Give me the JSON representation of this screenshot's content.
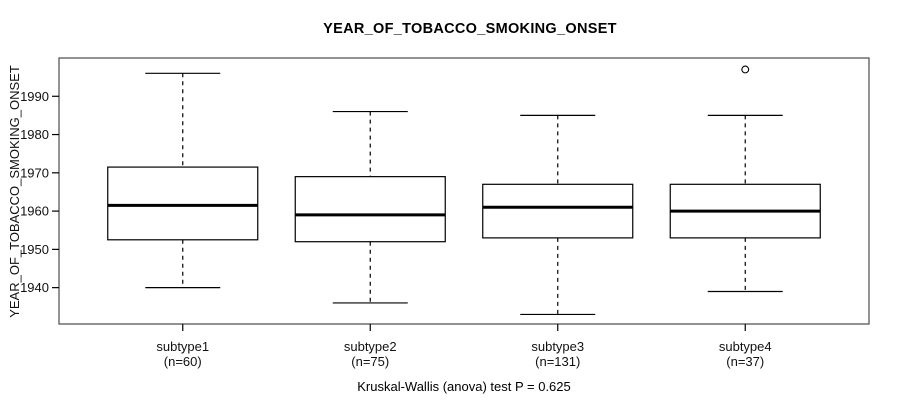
{
  "figure": {
    "title": "YEAR_OF_TOBACCO_SMOKING_ONSET",
    "caption": "Kruskal-Wallis (anova) test P = 0.625"
  },
  "chart_data": {
    "type": "boxplot",
    "title": "YEAR_OF_TOBACCO_SMOKING_ONSET",
    "ylabel": "YEAR_OF_TOBACCO_SMOKING_ONSET",
    "xlabel": "",
    "caption": "Kruskal-Wallis (anova) test P = 0.625",
    "ylim": [
      1930.5,
      2000
    ],
    "yticks": [
      1940,
      1950,
      1960,
      1970,
      1980,
      1990
    ],
    "grid": false,
    "legend": "none",
    "groups": [
      {
        "label": "subtype1",
        "n_label": "(n=60)",
        "n": 60,
        "whisker_low": 1940,
        "q1": 1952.5,
        "median": 1961.5,
        "q3": 1971.5,
        "whisker_high": 1996,
        "outliers": []
      },
      {
        "label": "subtype2",
        "n_label": "(n=75)",
        "n": 75,
        "whisker_low": 1936,
        "q1": 1952,
        "median": 1959,
        "q3": 1969,
        "whisker_high": 1986,
        "outliers": []
      },
      {
        "label": "subtype3",
        "n_label": "(n=131)",
        "n": 131,
        "whisker_low": 1933,
        "q1": 1953,
        "median": 1961,
        "q3": 1967,
        "whisker_high": 1985,
        "outliers": []
      },
      {
        "label": "subtype4",
        "n_label": "(n=37)",
        "n": 37,
        "whisker_low": 1939,
        "q1": 1953,
        "median": 1960,
        "q3": 1967,
        "whisker_high": 1985,
        "outliers": [
          1997
        ]
      }
    ]
  }
}
